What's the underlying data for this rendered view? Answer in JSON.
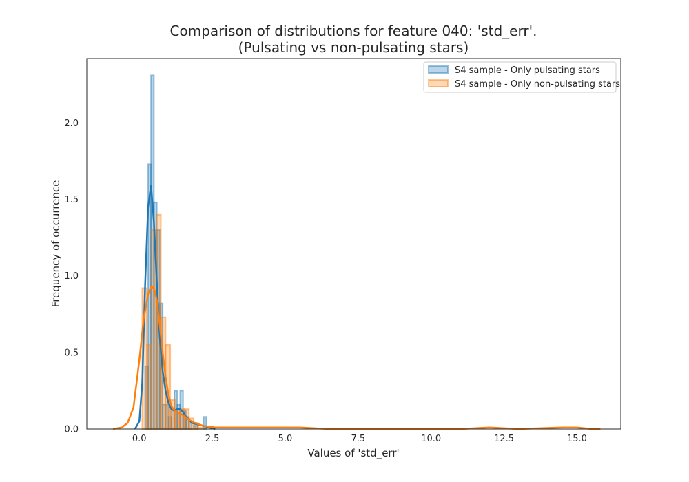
{
  "chart_data": {
    "type": "histogram",
    "title_line1": "Comparison of distributions for feature 040: 'std_err'.",
    "title_line2": "(Pulsating vs non-pulsating stars)",
    "xlabel": "Values of 'std_err'",
    "ylabel": "Frequency of occurrence",
    "xlim": [
      -1.8,
      16.5
    ],
    "ylim": [
      0,
      2.42
    ],
    "xticks": [
      0.0,
      2.5,
      5.0,
      7.5,
      10.0,
      12.5,
      15.0
    ],
    "xtick_labels": [
      "0.0",
      "2.5",
      "5.0",
      "7.5",
      "10.0",
      "12.5",
      "15.0"
    ],
    "yticks": [
      0.0,
      0.5,
      1.0,
      1.5,
      2.0
    ],
    "ytick_labels": [
      "0.0",
      "0.5",
      "1.0",
      "1.5",
      "2.0"
    ],
    "grid": false,
    "legend_position": "top-right",
    "series": [
      {
        "name": "S4 sample - Only pulsating stars",
        "color": "#1f77b4",
        "bin_width": 0.1,
        "bins": [
          [
            0.1,
            0.0
          ],
          [
            0.2,
            0.41
          ],
          [
            0.3,
            1.73
          ],
          [
            0.4,
            2.31
          ],
          [
            0.5,
            1.48
          ],
          [
            0.6,
            1.3
          ],
          [
            0.7,
            0.82
          ],
          [
            0.8,
            0.16
          ],
          [
            0.9,
            0.16
          ],
          [
            1.0,
            0.08
          ],
          [
            1.1,
            0.12
          ],
          [
            1.2,
            0.25
          ],
          [
            1.3,
            0.16
          ],
          [
            1.4,
            0.25
          ],
          [
            1.5,
            0.12
          ],
          [
            1.6,
            0.08
          ],
          [
            1.7,
            0.04
          ],
          [
            1.8,
            0.0
          ],
          [
            1.9,
            0.04
          ],
          [
            2.0,
            0.0
          ],
          [
            2.1,
            0.0
          ],
          [
            2.2,
            0.08
          ]
        ],
        "kde": [
          [
            -0.15,
            0.0
          ],
          [
            0.0,
            0.05
          ],
          [
            0.1,
            0.3
          ],
          [
            0.2,
            0.95
          ],
          [
            0.3,
            1.45
          ],
          [
            0.4,
            1.59
          ],
          [
            0.5,
            1.35
          ],
          [
            0.6,
            0.95
          ],
          [
            0.7,
            0.6
          ],
          [
            0.8,
            0.38
          ],
          [
            0.9,
            0.25
          ],
          [
            1.0,
            0.17
          ],
          [
            1.1,
            0.13
          ],
          [
            1.2,
            0.12
          ],
          [
            1.3,
            0.13
          ],
          [
            1.4,
            0.13
          ],
          [
            1.5,
            0.11
          ],
          [
            1.6,
            0.08
          ],
          [
            1.7,
            0.06
          ],
          [
            1.8,
            0.04
          ],
          [
            2.0,
            0.03
          ],
          [
            2.2,
            0.02
          ],
          [
            2.4,
            0.01
          ],
          [
            2.6,
            0.0
          ]
        ]
      },
      {
        "name": "S4 sample - Only non-pulsating stars",
        "color": "#ff7f0e",
        "bin_width": 0.16,
        "bins": [
          [
            0.0,
            0.0
          ],
          [
            0.1,
            0.92
          ],
          [
            0.26,
            0.55
          ],
          [
            0.42,
            1.3
          ],
          [
            0.58,
            1.4
          ],
          [
            0.74,
            0.73
          ],
          [
            0.9,
            0.55
          ],
          [
            1.06,
            0.19
          ],
          [
            1.22,
            0.11
          ],
          [
            1.38,
            0.13
          ],
          [
            1.54,
            0.13
          ],
          [
            1.7,
            0.07
          ],
          [
            1.86,
            0.02
          ],
          [
            2.02,
            0.01
          ],
          [
            2.18,
            0.0
          ]
        ],
        "kde": [
          [
            -0.9,
            0.0
          ],
          [
            -0.6,
            0.01
          ],
          [
            -0.4,
            0.04
          ],
          [
            -0.2,
            0.14
          ],
          [
            0.0,
            0.45
          ],
          [
            0.15,
            0.72
          ],
          [
            0.3,
            0.88
          ],
          [
            0.4,
            0.93
          ],
          [
            0.5,
            0.92
          ],
          [
            0.6,
            0.84
          ],
          [
            0.7,
            0.68
          ],
          [
            0.8,
            0.5
          ],
          [
            0.9,
            0.34
          ],
          [
            1.0,
            0.22
          ],
          [
            1.1,
            0.15
          ],
          [
            1.2,
            0.12
          ],
          [
            1.3,
            0.11
          ],
          [
            1.4,
            0.1
          ],
          [
            1.5,
            0.09
          ],
          [
            1.7,
            0.06
          ],
          [
            1.9,
            0.04
          ],
          [
            2.2,
            0.02
          ],
          [
            2.6,
            0.01
          ],
          [
            3.5,
            0.01
          ],
          [
            4.5,
            0.01
          ],
          [
            5.0,
            0.01
          ],
          [
            5.5,
            0.01
          ],
          [
            6.5,
            0.0
          ],
          [
            8.0,
            0.0
          ],
          [
            9.5,
            0.0
          ],
          [
            11.0,
            0.0
          ],
          [
            12.0,
            0.01
          ],
          [
            13.0,
            0.0
          ],
          [
            14.5,
            0.01
          ],
          [
            15.0,
            0.01
          ],
          [
            15.5,
            0.0
          ],
          [
            15.8,
            0.0
          ]
        ]
      }
    ]
  }
}
